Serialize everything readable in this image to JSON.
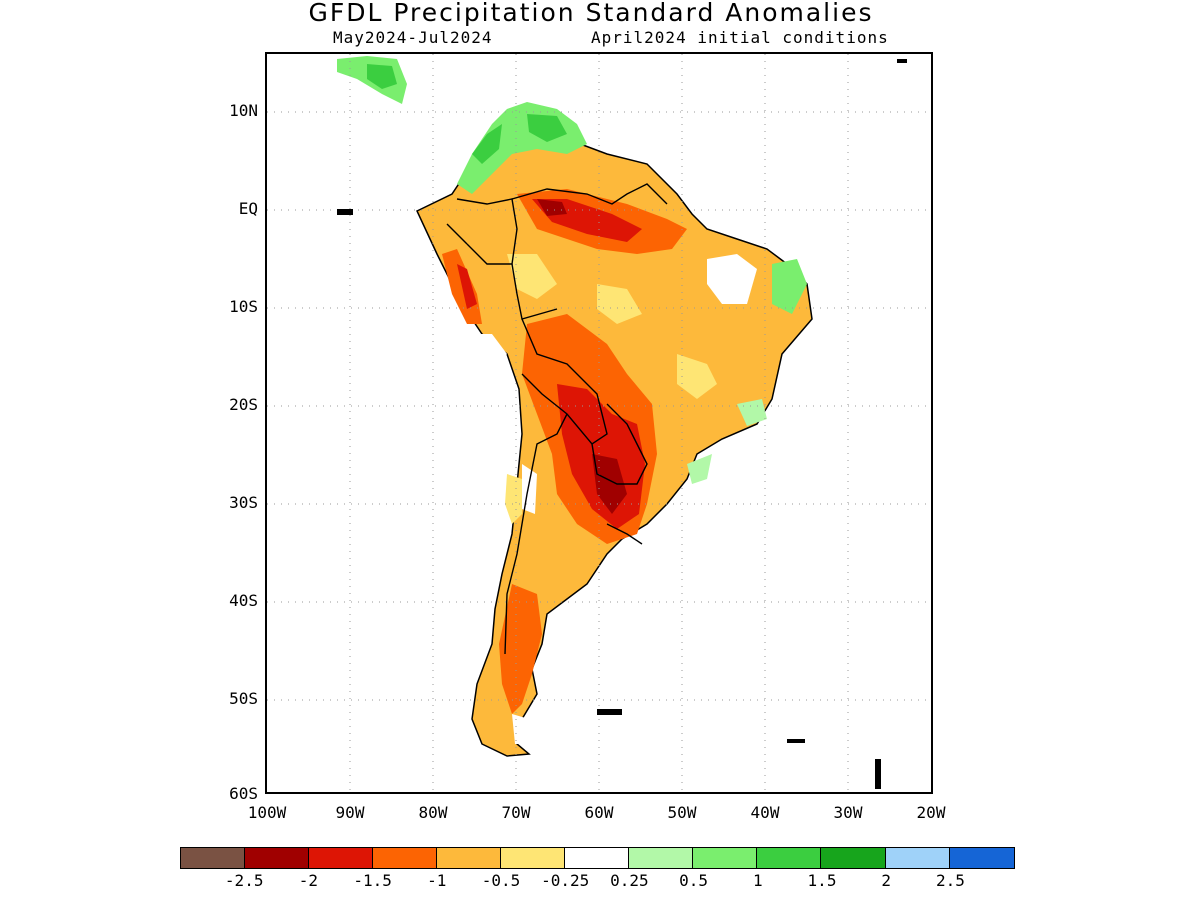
{
  "title": "GFDL Precipitation Standard Anomalies",
  "subtitle_period": "May2024-Jul2024",
  "subtitle_init": "April2024 initial conditions",
  "lat_labels": [
    "10N",
    "EQ",
    "10S",
    "20S",
    "30S",
    "40S",
    "50S",
    "60S"
  ],
  "lon_labels": [
    "100W",
    "90W",
    "80W",
    "70W",
    "60W",
    "50W",
    "40W",
    "30W",
    "20W"
  ],
  "colorbar": {
    "colors": [
      "#7a5243",
      "#a00000",
      "#dd1505",
      "#fc6403",
      "#fdb93b",
      "#fee574",
      "#ffffff",
      "#b2f8a8",
      "#7aee6e",
      "#3bce40",
      "#17a51c",
      "#9fd2f9",
      "#1565d6"
    ],
    "labels": [
      "-2.5",
      "-2",
      "-1.5",
      "-1",
      "-0.5",
      "-0.25",
      "0.25",
      "0.5",
      "1",
      "1.5",
      "2",
      "2.5"
    ]
  },
  "colors": {
    "coastline": "#000000",
    "grid": "#999999"
  }
}
